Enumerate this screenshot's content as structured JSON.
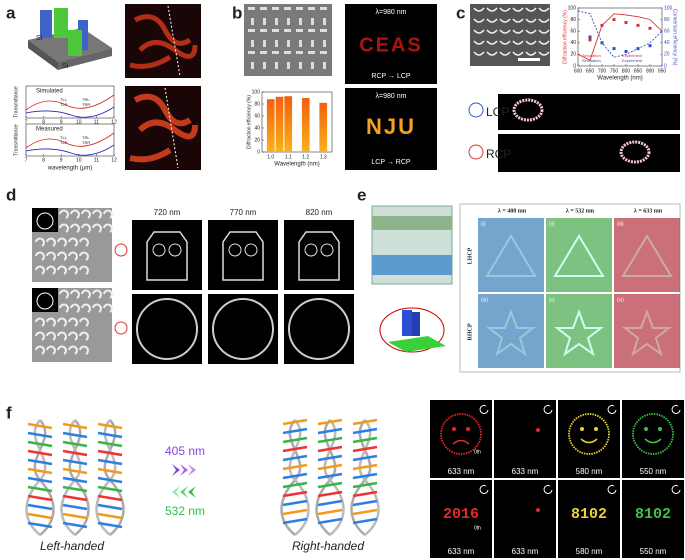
{
  "chart_data": [
    {
      "type": "bar",
      "x": [
        1,
        1.05,
        1.1,
        1.2,
        1.3
      ],
      "values": [
        88,
        92,
        93,
        90,
        82
      ],
      "color": "#f07a1a",
      "xlim": [
        0.95,
        1.35
      ],
      "xticks": [
        {
          "value": 1,
          "label": "1.0"
        },
        1.1,
        1.2,
        1.3
      ],
      "ylim": [
        0,
        100
      ],
      "yticks": [
        0,
        20,
        40,
        60,
        80,
        100
      ],
      "xlabel": "Wavelength (nm)",
      "ylabel": "Diffraction efficiency (%)"
    },
    {
      "type": "line",
      "x": [
        600,
        650,
        700,
        750,
        800,
        850,
        900,
        950
      ],
      "series": [
        {
          "name": "Simulation",
          "color": "#e03030",
          "values": [
            20,
            10,
            70,
            90,
            88,
            85,
            80,
            60
          ]
        },
        {
          "name": "Experiment",
          "color": "#e03030",
          "marker": true,
          "values": [
            null,
            45,
            70,
            80,
            75,
            70,
            65,
            null
          ]
        },
        {
          "name": "Simulation",
          "color": "#3050c0",
          "dash": true,
          "axis": "y2",
          "values": [
            95,
            90,
            40,
            15,
            20,
            30,
            40,
            60
          ]
        },
        {
          "name": "Experiment",
          "color": "#3050c0",
          "marker": true,
          "axis": "y2",
          "values": [
            null,
            50,
            40,
            30,
            25,
            30,
            35,
            null
          ]
        }
      ],
      "xlim": [
        600,
        950
      ],
      "xticks": [
        600,
        650,
        700,
        750,
        800,
        850,
        900,
        950
      ],
      "ylim": [
        0,
        100
      ],
      "yticks": [
        0,
        20,
        40,
        60,
        80,
        100
      ],
      "y2lim": [
        0,
        100
      ],
      "y2ticks": [
        0,
        20,
        40,
        60,
        80,
        100
      ],
      "xlabel": "Wavelength (nm)",
      "ylabel": "Diffraction efficiency (%)",
      "y2label": "Conversion efficiency (%)"
    }
  ],
  "panels": {
    "a": {
      "label": "a",
      "material": [
        "Si",
        "Si"
      ],
      "plots": [
        "Simulated",
        "Measured"
      ],
      "ylabel": "Transmittance",
      "xlabel": "wavelength (μm)",
      "xticks": [
        7,
        8,
        9,
        10,
        11,
        12
      ],
      "legend": [
        "TLL",
        "TRL",
        "TLR",
        "TRR"
      ]
    },
    "b": {
      "label": "b",
      "wavelength": "λ=980 nm",
      "conversions": [
        "RCP → LCP",
        "LCP → RCP"
      ],
      "images": [
        "CEAS",
        "NJU"
      ]
    },
    "c": {
      "label": "c",
      "rows": [
        "LCP",
        "RCP"
      ]
    },
    "d": {
      "label": "d",
      "columns": [
        "720 nm",
        "770 nm",
        "820 nm"
      ]
    },
    "e": {
      "label": "e",
      "columns": [
        "λ = 488 nm",
        "λ = 532 nm",
        "λ = 633 nm"
      ],
      "rows": [
        "LHCP",
        "RHCP"
      ],
      "cells": [
        "(i)",
        "(ii)",
        "(iii)",
        "(iv)",
        "(v)",
        "(vi)"
      ]
    },
    "f": {
      "label": "f",
      "wavelengths": [
        "405 nm",
        "532 nm"
      ],
      "helices": [
        "Left-handed",
        "Right-handed"
      ],
      "order": "0th",
      "photos": [
        "633 nm",
        "633 nm",
        "580 nm",
        "550 nm",
        "633 nm",
        "633 nm",
        "580 nm",
        "550 nm"
      ],
      "digits": [
        "2016",
        "8102",
        "8102"
      ]
    }
  }
}
